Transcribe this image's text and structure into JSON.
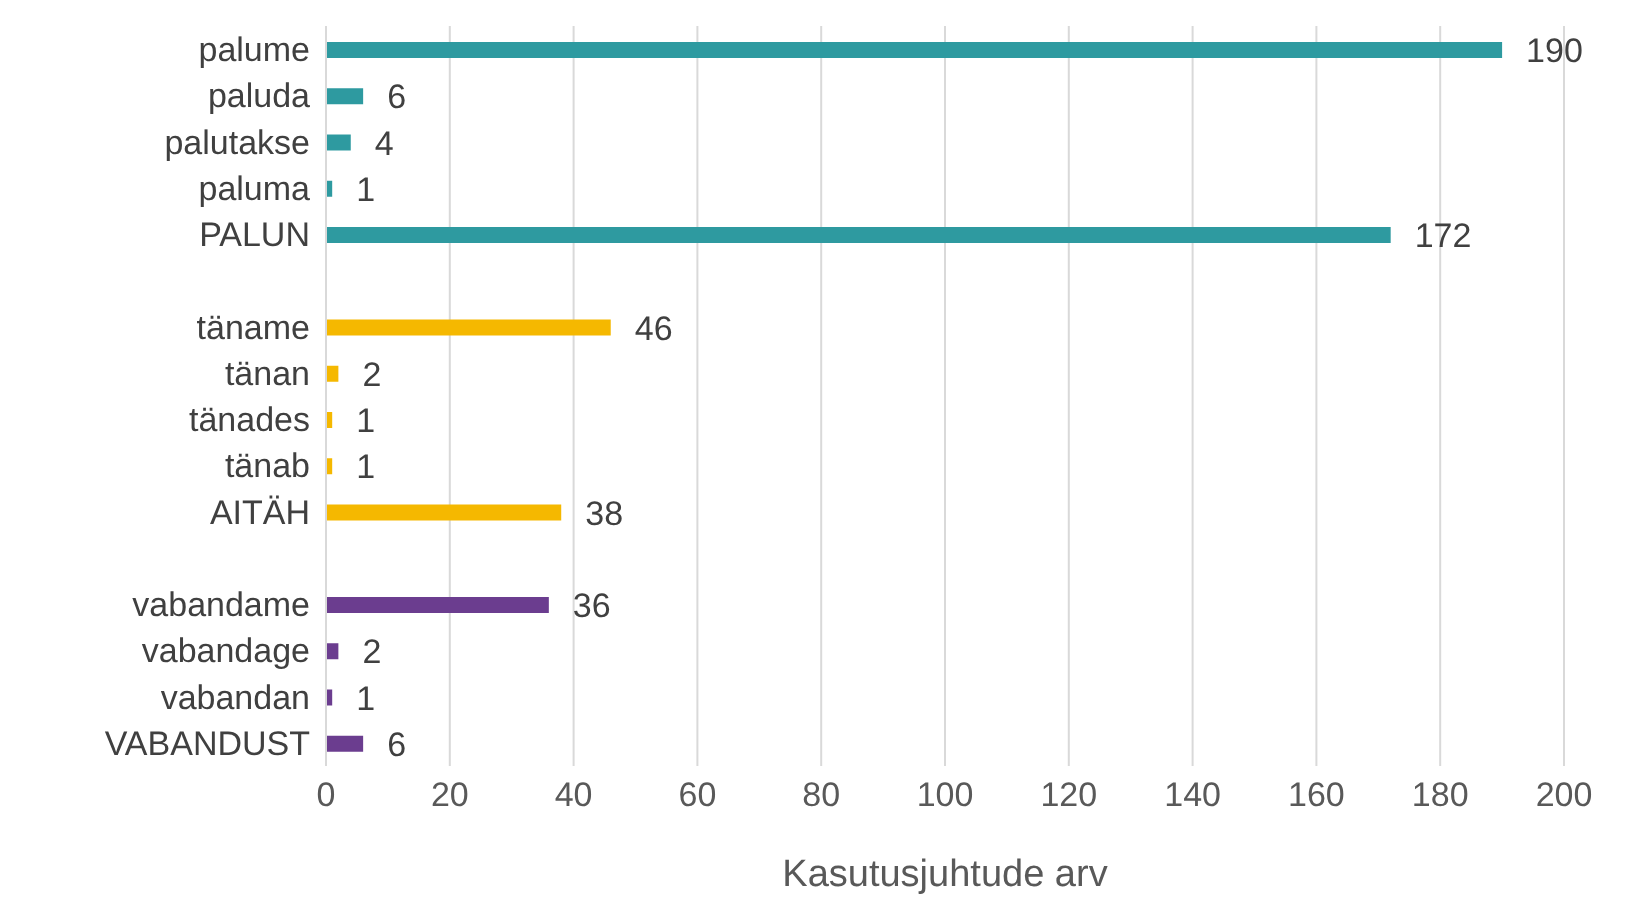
{
  "chart_data": {
    "type": "bar",
    "orientation": "horizontal",
    "xlabel": "Kasutusjuhtude arv",
    "categories": [
      "palume",
      "paluda",
      "palutakse",
      "paluma",
      "PALUN",
      null,
      "täname",
      "tänan",
      "tänades",
      "tänab",
      "AITÄH",
      null,
      "vabandame",
      "vabandage",
      "vabandan",
      "VABANDUST"
    ],
    "values": [
      190,
      6,
      4,
      1,
      172,
      null,
      46,
      2,
      1,
      1,
      38,
      null,
      36,
      2,
      1,
      6
    ],
    "colors": [
      "#2e9aa0",
      "#2e9aa0",
      "#2e9aa0",
      "#2e9aa0",
      "#2e9aa0",
      "#ffffff",
      "#f5b800",
      "#f5b800",
      "#f5b800",
      "#f5b800",
      "#f5b800",
      "#ffffff",
      "#6b3d8f",
      "#6b3d8f",
      "#6b3d8f",
      "#6b3d8f"
    ],
    "xlim": [
      0,
      200
    ],
    "xticks": [
      0,
      20,
      40,
      60,
      80,
      100,
      120,
      140,
      160,
      180,
      200
    ],
    "grid": "x",
    "data_labels": true
  }
}
